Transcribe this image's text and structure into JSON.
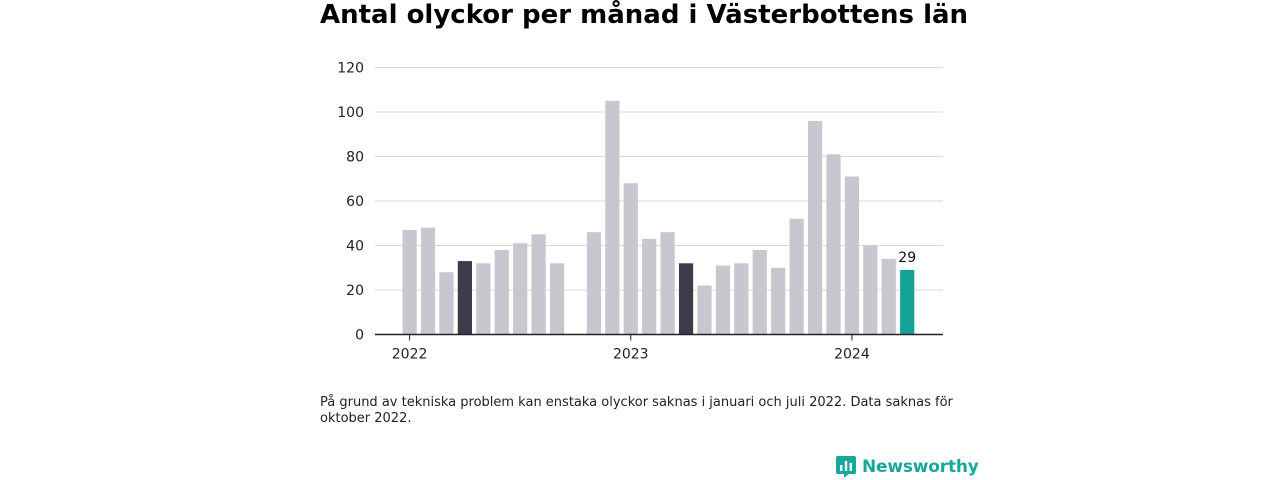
{
  "chart_data": {
    "type": "bar",
    "title": "Antal olyckor per månad i Västerbottens län",
    "xlabel": "",
    "ylabel": "",
    "ylim": [
      0,
      120
    ],
    "yticks": [
      "0",
      "20",
      "40",
      "60",
      "80",
      "100",
      "120"
    ],
    "year_labels": [
      "2022",
      "2023",
      "2024"
    ],
    "categories": [
      "2022-01",
      "2022-02",
      "2022-03",
      "2022-04",
      "2022-05",
      "2022-06",
      "2022-07",
      "2022-08",
      "2022-09",
      "2022-10",
      "2022-11",
      "2022-12",
      "2023-01",
      "2023-02",
      "2023-03",
      "2023-04",
      "2023-05",
      "2023-06",
      "2023-07",
      "2023-08",
      "2023-09",
      "2023-10",
      "2023-11",
      "2023-12",
      "2024-01",
      "2024-02",
      "2024-03",
      "2024-04"
    ],
    "values": [
      47,
      48,
      28,
      33,
      32,
      38,
      41,
      45,
      32,
      null,
      46,
      105,
      68,
      43,
      46,
      32,
      22,
      31,
      32,
      38,
      30,
      52,
      96,
      81,
      71,
      40,
      34,
      29
    ],
    "highlight_label": "29",
    "colors": {
      "default": "#c8c7cf",
      "same_month_previous_years": "#3d3c4a",
      "current": "#13a497",
      "axis": "#222222",
      "grid": "#d9d9d9"
    },
    "grid": true,
    "legend": "none"
  },
  "footnote": "På grund av tekniska problem kan enstaka olyckor saknas i januari och juli 2022. Data saknas för oktober 2022.",
  "brand": {
    "name": "Newsworthy",
    "icon": "bar-chart-speech-bubble-icon"
  }
}
